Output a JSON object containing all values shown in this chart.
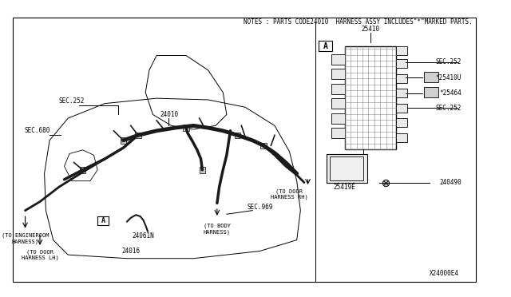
{
  "bg_color": "#ffffff",
  "line_color": "#000000",
  "thick_line_color": "#000000",
  "diagram_color": "#1a1a1a",
  "title_note": "NOTES : PARTS CODE24010  HARNESS ASSY INCLUDES\"*\"MARKED PARTS.",
  "diagram_id": "X24000E4",
  "part_box_label": "A",
  "labels": {
    "sec252_top": "SEC.252",
    "sec680": "SEC.680",
    "part24010": "24010",
    "to_engineroom": "(TO ENGINEROOM\nHARNESS)",
    "to_door_rh": "(TO DOOR\nHARNESS RH)",
    "sec969": "SEC.969",
    "to_door_lh": "(TO DOOR\nHARNESS LH)",
    "box_a": "A",
    "part24061n": "24061N",
    "part24016": "24016",
    "to_body": "(TO BODY\nHARNESS)",
    "part25410": "25410",
    "sec252_right1": "SEC.252",
    "part25464": "*25464",
    "part25410u": "*25410U",
    "sec252_right2": "SEC.252",
    "part25419e": "25419E",
    "part240490": "240490"
  },
  "figsize": [
    6.4,
    3.72
  ],
  "dpi": 100
}
